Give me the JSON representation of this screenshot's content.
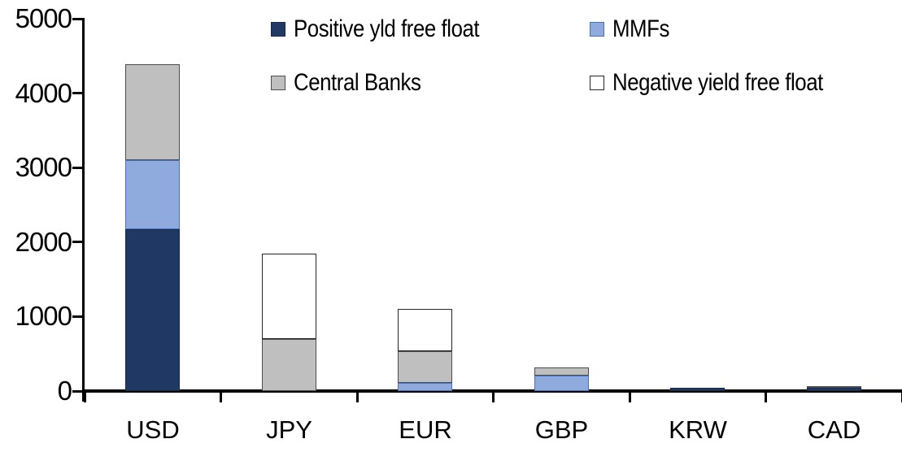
{
  "chart_data": {
    "type": "bar",
    "stacked": true,
    "title": "",
    "xlabel": "",
    "ylabel": "",
    "categories": [
      "USD",
      "JPY",
      "EUR",
      "GBP",
      "KRW",
      "CAD"
    ],
    "series": [
      {
        "name": "Positive yld free float",
        "color": "#1F3864",
        "border_color": "#17294A",
        "values": [
          2170,
          0,
          0,
          0,
          45,
          40
        ]
      },
      {
        "name": "MMFs",
        "color": "#8FAADC",
        "border_color": "#4472C4",
        "values": [
          930,
          0,
          110,
          210,
          0,
          0
        ]
      },
      {
        "name": "Central Banks",
        "color": "#BFBFBF",
        "border_color": "#4D4D4D",
        "values": [
          1290,
          700,
          430,
          110,
          0,
          30
        ]
      },
      {
        "name": "Negative yield free float",
        "color": "#FFFFFF",
        "border_color": "#262626",
        "values": [
          0,
          1140,
          560,
          0,
          0,
          0
        ]
      }
    ],
    "totals_by_category": [
      4390,
      1840,
      1100,
      320,
      45,
      70
    ],
    "ylim": [
      0,
      5000
    ],
    "ytick_step": 1000,
    "ytick_labels": [
      "0",
      "1000",
      "2000",
      "3000",
      "4000",
      "5000"
    ],
    "legend_position": "top",
    "legend_rows": [
      [
        "Positive yld free float",
        "MMFs"
      ],
      [
        "Central Banks",
        "Negative yield free float"
      ]
    ],
    "grid": false,
    "axis_color": "#000000"
  }
}
